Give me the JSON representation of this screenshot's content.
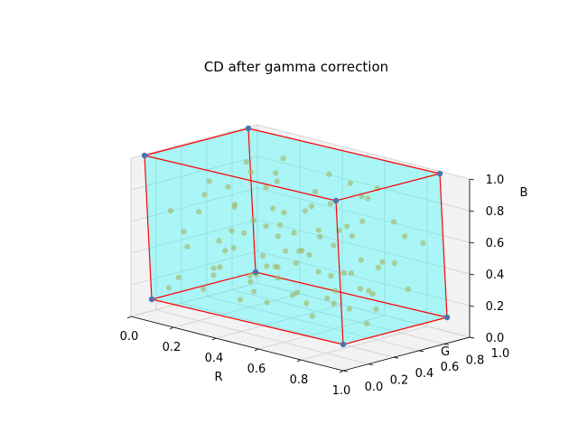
{
  "chart_data": {
    "type": "scatter",
    "projection": "3d",
    "title": "CD after gamma correction",
    "xlabel": "R",
    "ylabel": "G",
    "zlabel": "B",
    "xlim": [
      0.0,
      1.0
    ],
    "ylim": [
      0.0,
      1.0
    ],
    "zlim": [
      0.0,
      1.0
    ],
    "xticks": [
      "0.0",
      "0.2",
      "0.4",
      "0.6",
      "0.8",
      "1.0"
    ],
    "yticks": [
      "0.0",
      "0.2",
      "0.4",
      "0.6",
      "0.8",
      "1.0"
    ],
    "zticks": [
      "0.0",
      "0.2",
      "0.4",
      "0.6",
      "0.8",
      "1.0"
    ],
    "grid": true,
    "colors": {
      "cube_fill": "#00ffff",
      "cube_edge": "#ff0000",
      "corner_point": "#4c72b0",
      "data_point": "#a3b86a",
      "pane": "#f2f2f2",
      "grid": "#d0d0d0"
    },
    "cube_corners": [
      [
        0,
        0,
        0
      ],
      [
        1,
        0,
        0
      ],
      [
        0,
        1,
        0
      ],
      [
        1,
        1,
        0
      ],
      [
        0,
        0,
        1
      ],
      [
        1,
        0,
        1
      ],
      [
        0,
        1,
        1
      ],
      [
        1,
        1,
        1
      ]
    ],
    "points": [
      [
        0.05,
        0.08,
        0.08
      ],
      [
        0.12,
        0.05,
        0.18
      ],
      [
        0.22,
        0.1,
        0.12
      ],
      [
        0.3,
        0.06,
        0.25
      ],
      [
        0.4,
        0.12,
        0.1
      ],
      [
        0.48,
        0.08,
        0.3
      ],
      [
        0.58,
        0.05,
        0.15
      ],
      [
        0.68,
        0.12,
        0.22
      ],
      [
        0.8,
        0.08,
        0.12
      ],
      [
        0.9,
        0.05,
        0.28
      ],
      [
        0.08,
        0.22,
        0.35
      ],
      [
        0.18,
        0.28,
        0.22
      ],
      [
        0.26,
        0.2,
        0.45
      ],
      [
        0.36,
        0.3,
        0.18
      ],
      [
        0.46,
        0.25,
        0.4
      ],
      [
        0.55,
        0.22,
        0.28
      ],
      [
        0.65,
        0.3,
        0.12
      ],
      [
        0.75,
        0.25,
        0.38
      ],
      [
        0.85,
        0.2,
        0.2
      ],
      [
        0.95,
        0.28,
        0.32
      ],
      [
        0.05,
        0.4,
        0.55
      ],
      [
        0.15,
        0.45,
        0.3
      ],
      [
        0.25,
        0.38,
        0.65
      ],
      [
        0.35,
        0.48,
        0.25
      ],
      [
        0.45,
        0.42,
        0.5
      ],
      [
        0.55,
        0.4,
        0.35
      ],
      [
        0.65,
        0.45,
        0.6
      ],
      [
        0.75,
        0.4,
        0.22
      ],
      [
        0.85,
        0.48,
        0.45
      ],
      [
        0.95,
        0.42,
        0.15
      ],
      [
        0.1,
        0.6,
        0.7
      ],
      [
        0.2,
        0.55,
        0.42
      ],
      [
        0.3,
        0.65,
        0.2
      ],
      [
        0.4,
        0.58,
        0.62
      ],
      [
        0.5,
        0.62,
        0.35
      ],
      [
        0.6,
        0.55,
        0.52
      ],
      [
        0.7,
        0.65,
        0.28
      ],
      [
        0.8,
        0.6,
        0.68
      ],
      [
        0.9,
        0.55,
        0.4
      ],
      [
        0.12,
        0.75,
        0.85
      ],
      [
        0.22,
        0.8,
        0.55
      ],
      [
        0.32,
        0.72,
        0.3
      ],
      [
        0.42,
        0.85,
        0.72
      ],
      [
        0.52,
        0.78,
        0.18
      ],
      [
        0.62,
        0.82,
        0.48
      ],
      [
        0.72,
        0.75,
        0.8
      ],
      [
        0.82,
        0.85,
        0.35
      ],
      [
        0.92,
        0.78,
        0.58
      ],
      [
        0.06,
        0.9,
        0.4
      ],
      [
        0.16,
        0.95,
        0.75
      ],
      [
        0.28,
        0.92,
        0.25
      ],
      [
        0.38,
        0.88,
        0.6
      ],
      [
        0.48,
        0.95,
        0.45
      ],
      [
        0.58,
        0.9,
        0.82
      ],
      [
        0.7,
        0.95,
        0.3
      ],
      [
        0.8,
        0.9,
        0.62
      ],
      [
        0.92,
        0.95,
        0.5
      ],
      [
        0.04,
        0.15,
        0.6
      ],
      [
        0.14,
        0.35,
        0.8
      ],
      [
        0.24,
        0.12,
        0.78
      ],
      [
        0.34,
        0.18,
        0.55
      ],
      [
        0.44,
        0.35,
        0.85
      ],
      [
        0.54,
        0.15,
        0.65
      ],
      [
        0.64,
        0.35,
        0.75
      ],
      [
        0.74,
        0.12,
        0.55
      ],
      [
        0.84,
        0.38,
        0.7
      ],
      [
        0.94,
        0.15,
        0.45
      ],
      [
        0.08,
        0.52,
        0.15
      ],
      [
        0.18,
        0.68,
        0.1
      ],
      [
        0.28,
        0.5,
        0.88
      ],
      [
        0.38,
        0.7,
        0.45
      ],
      [
        0.48,
        0.52,
        0.1
      ],
      [
        0.58,
        0.7,
        0.92
      ],
      [
        0.68,
        0.52,
        0.78
      ],
      [
        0.78,
        0.7,
        0.15
      ],
      [
        0.88,
        0.52,
        0.88
      ],
      [
        0.98,
        0.68,
        0.25
      ],
      [
        0.02,
        0.3,
        0.42
      ],
      [
        0.12,
        0.62,
        0.58
      ],
      [
        0.32,
        0.4,
        0.08
      ],
      [
        0.42,
        0.05,
        0.48
      ],
      [
        0.52,
        0.32,
        0.62
      ],
      [
        0.62,
        0.1,
        0.4
      ],
      [
        0.72,
        0.58,
        0.05
      ],
      [
        0.82,
        0.28,
        0.58
      ],
      [
        0.92,
        0.38,
        0.05
      ],
      [
        0.36,
        0.6,
        0.82
      ],
      [
        0.66,
        0.88,
        0.1
      ],
      [
        0.26,
        0.85,
        0.9
      ],
      [
        0.86,
        0.65,
        0.92
      ]
    ]
  }
}
